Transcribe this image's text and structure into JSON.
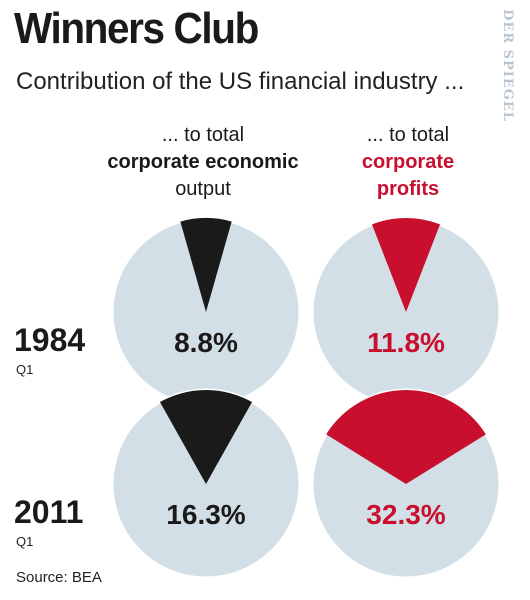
{
  "header": {
    "title": "Winners Club",
    "subtitle": "Contribution of the US financial industry ...",
    "watermark": "DER SPIEGEL"
  },
  "columns": [
    {
      "line1": "... to total",
      "line2": "corporate economic",
      "line3": "output",
      "color": "#1a1a1a"
    },
    {
      "line1": "... to total",
      "line2": "corporate",
      "line3": "profits",
      "color": "#c8102e"
    }
  ],
  "rows": [
    {
      "year": "1984",
      "quarter": "Q1"
    },
    {
      "year": "2011",
      "quarter": "Q1"
    }
  ],
  "source": "Source: BEA",
  "colors": {
    "pie_background": "#d3dfe6",
    "output": "#1a1a1a",
    "profits": "#c8102e"
  },
  "chart_data": {
    "type": "pie",
    "title": "Winners Club",
    "subtitle": "Contribution of the US financial industry ...",
    "series": [
      {
        "name": "... to total corporate economic output",
        "values": [
          8.8,
          16.3
        ]
      },
      {
        "name": "... to total corporate profits",
        "values": [
          11.8,
          32.3
        ]
      }
    ],
    "categories": [
      "1984 Q1",
      "2011 Q1"
    ],
    "labels": [
      [
        "8.8%",
        "16.3%"
      ],
      [
        "11.8%",
        "32.3%"
      ]
    ],
    "unit": "%",
    "grid": false
  }
}
